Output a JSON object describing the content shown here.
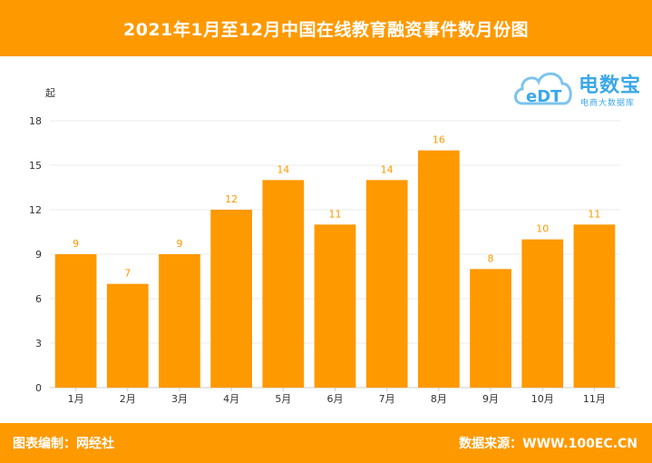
{
  "title": "2021年1月至12月中国在线教育融资事件数月份图",
  "footer": {
    "left": "图表编制：网经社",
    "right": "数据来源：WWW.100EC.CN"
  },
  "logo": {
    "mark": "eDT",
    "main": "电数宝",
    "sub": "电商大数据库"
  },
  "colors": {
    "accent": "#FF9900",
    "bar": "#FF9900",
    "label": "#FF9900",
    "logo": "#3BA8E8",
    "grid": "#EBEBEB",
    "axis_text": "#333333"
  },
  "chart_data": {
    "type": "bar",
    "title": "2021年1月至12月中国在线教育融资事件数月份图",
    "ylabel": "起",
    "xlabel": "",
    "categories": [
      "1月",
      "2月",
      "3月",
      "4月",
      "5月",
      "6月",
      "7月",
      "8月",
      "9月",
      "10月",
      "11月"
    ],
    "values": [
      9,
      7,
      9,
      12,
      14,
      11,
      14,
      16,
      8,
      10,
      11
    ],
    "ylim": [
      0,
      18
    ],
    "yticks": [
      0,
      3,
      6,
      9,
      12,
      15,
      18
    ],
    "grid": true,
    "legend": "none"
  }
}
